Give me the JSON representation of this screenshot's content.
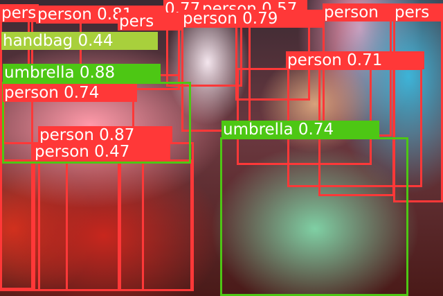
{
  "colors": {
    "person": "#ff3838",
    "umbrella": "#4dc714",
    "handbag": "#a8d03c"
  },
  "labels": {
    "p1": "pers",
    "p2": "person 0.81",
    "p3": "0.77",
    "p4": "person 0.57",
    "p5": "person 0.79",
    "p6": "person",
    "p7": "pers",
    "p8": "pers",
    "hb1": "handbag 0.44",
    "u1": "umbrella 0.88",
    "p9": "person 0.74",
    "p10": "person 0.71",
    "p11": "person 0.87",
    "p12": "person 0.47",
    "u2": "umbrella 0.74"
  }
}
